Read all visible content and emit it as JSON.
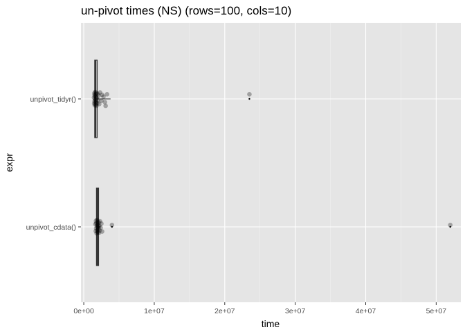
{
  "chart_data": {
    "type": "boxplot",
    "title": "un-pivot times (NS) (rows=100, cols=10)",
    "xlabel": "time",
    "ylabel": "expr",
    "xlim": [
      -400000,
      53500000
    ],
    "x_ticks": [
      0,
      10000000,
      20000000,
      30000000,
      40000000,
      50000000
    ],
    "x_tick_labels": [
      "0e+00",
      "1e+07",
      "2e+07",
      "3e+07",
      "4e+07",
      "5e+07"
    ],
    "categories": [
      "unpivot_tidyr()",
      "unpivot_cdata()"
    ],
    "grid": true,
    "orientation": "horizontal",
    "colors": {
      "panel_background": "#e5e5e5",
      "grid_major": "#ffffff",
      "grid_minor": "#f2f2f2",
      "box_outline": "#333333",
      "points": "#000000"
    },
    "series": [
      {
        "category": "unpivot_tidyr()",
        "box": {
          "min": 1500000,
          "q1": 1550000,
          "median": 1680000,
          "q3": 1900000,
          "max": 3800000
        },
        "outliers": [
          23500000
        ],
        "points": [
          {
            "x": 1450000,
            "jitter": 0.03
          },
          {
            "x": 1480000,
            "jitter": -0.1
          },
          {
            "x": 1500000,
            "jitter": 0.12
          },
          {
            "x": 1520000,
            "jitter": -0.05
          },
          {
            "x": 1540000,
            "jitter": 0.08
          },
          {
            "x": 1560000,
            "jitter": -0.14
          },
          {
            "x": 1580000,
            "jitter": 0.0
          },
          {
            "x": 1600000,
            "jitter": 0.15
          },
          {
            "x": 1620000,
            "jitter": -0.08
          },
          {
            "x": 1640000,
            "jitter": 0.06
          },
          {
            "x": 1660000,
            "jitter": -0.02
          },
          {
            "x": 1680000,
            "jitter": 0.1
          },
          {
            "x": 1700000,
            "jitter": -0.12
          },
          {
            "x": 1720000,
            "jitter": 0.04
          },
          {
            "x": 1750000,
            "jitter": -0.06
          },
          {
            "x": 1780000,
            "jitter": 0.13
          },
          {
            "x": 1800000,
            "jitter": -0.15
          },
          {
            "x": 1850000,
            "jitter": 0.02
          },
          {
            "x": 1900000,
            "jitter": -0.09
          },
          {
            "x": 1950000,
            "jitter": 0.11
          },
          {
            "x": 2000000,
            "jitter": -0.03
          },
          {
            "x": 2100000,
            "jitter": 0.07
          },
          {
            "x": 2200000,
            "jitter": -0.11
          },
          {
            "x": 2300000,
            "jitter": 0.14
          },
          {
            "x": 2500000,
            "jitter": -0.04
          },
          {
            "x": 2600000,
            "jitter": 0.09
          },
          {
            "x": 2800000,
            "jitter": 0.05
          },
          {
            "x": 3000000,
            "jitter": -0.07
          },
          {
            "x": 3100000,
            "jitter": -0.15
          },
          {
            "x": 3300000,
            "jitter": 0.1
          },
          {
            "x": 23500000,
            "jitter": 0.1
          }
        ]
      },
      {
        "category": "unpivot_cdata()",
        "box": {
          "min": 1700000,
          "q1": 1800000,
          "median": 1950000,
          "q3": 2100000,
          "max": 2400000
        },
        "outliers": [
          4000000,
          52000000
        ],
        "points": [
          {
            "x": 1650000,
            "jitter": 0.06
          },
          {
            "x": 1700000,
            "jitter": -0.09
          },
          {
            "x": 1730000,
            "jitter": 0.13
          },
          {
            "x": 1760000,
            "jitter": -0.03
          },
          {
            "x": 1790000,
            "jitter": 0.08
          },
          {
            "x": 1820000,
            "jitter": -0.14
          },
          {
            "x": 1850000,
            "jitter": 0.01
          },
          {
            "x": 1880000,
            "jitter": 0.15
          },
          {
            "x": 1910000,
            "jitter": -0.07
          },
          {
            "x": 1940000,
            "jitter": 0.05
          },
          {
            "x": 1970000,
            "jitter": -0.11
          },
          {
            "x": 2000000,
            "jitter": 0.11
          },
          {
            "x": 2030000,
            "jitter": -0.01
          },
          {
            "x": 2060000,
            "jitter": 0.03
          },
          {
            "x": 2090000,
            "jitter": -0.05
          },
          {
            "x": 2120000,
            "jitter": 0.09
          },
          {
            "x": 2150000,
            "jitter": -0.13
          },
          {
            "x": 2200000,
            "jitter": 0.02
          },
          {
            "x": 2250000,
            "jitter": -0.08
          },
          {
            "x": 2300000,
            "jitter": 0.12
          },
          {
            "x": 2400000,
            "jitter": -0.02
          },
          {
            "x": 2500000,
            "jitter": 0.07
          },
          {
            "x": 2600000,
            "jitter": -0.1
          },
          {
            "x": 4000000,
            "jitter": 0.04
          },
          {
            "x": 52000000,
            "jitter": 0.04
          }
        ]
      }
    ]
  }
}
